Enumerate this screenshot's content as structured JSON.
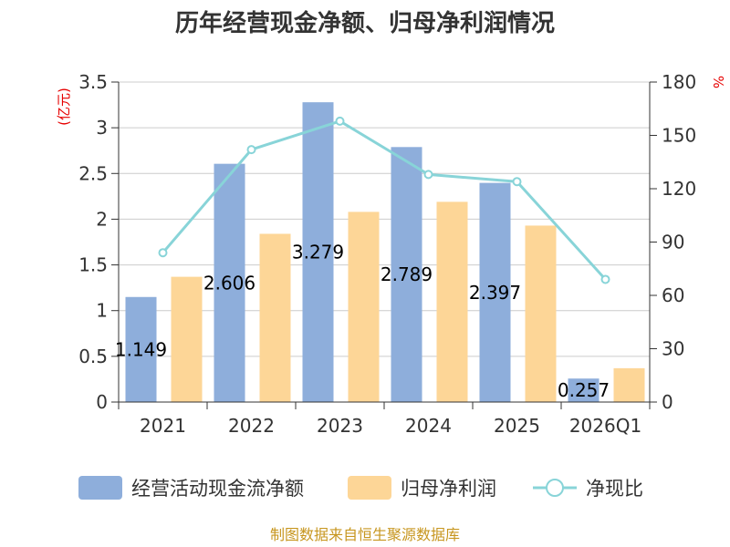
{
  "chart_data": {
    "type": "bar",
    "title": "历年经营现金净额、归母净利润情况",
    "categories": [
      "2021",
      "2022",
      "2023",
      "2024",
      "2025",
      "2026Q1"
    ],
    "series": [
      {
        "name": "经营活动现金流净额",
        "type": "bar",
        "axis": "left",
        "color": "#8eaedb",
        "values": [
          1.149,
          2.606,
          3.279,
          2.789,
          2.397,
          0.257
        ],
        "labels": [
          "1.149",
          "2.606",
          "3.279",
          "2.789",
          "2.397",
          "0.257"
        ]
      },
      {
        "name": "归母净利润",
        "type": "bar",
        "axis": "left",
        "color": "#fdd697",
        "values": [
          1.37,
          1.84,
          2.08,
          2.19,
          1.93,
          0.37
        ]
      },
      {
        "name": "净现比",
        "type": "line",
        "axis": "right",
        "color": "#88d4d8",
        "values": [
          84,
          142,
          158,
          128,
          124,
          69
        ]
      }
    ],
    "y_left": {
      "unit": "(亿元)",
      "ylim": [
        0,
        3.5
      ],
      "ticks": [
        "0",
        "0.5",
        "1",
        "1.5",
        "2",
        "2.5",
        "3",
        "3.5"
      ]
    },
    "y_right": {
      "unit": "%",
      "ylim": [
        0,
        180
      ],
      "ticks": [
        "0",
        "30",
        "60",
        "90",
        "120",
        "150",
        "180"
      ]
    },
    "grid": true,
    "legend": "bottom-center",
    "source": "制图数据来自恒生聚源数据库"
  }
}
